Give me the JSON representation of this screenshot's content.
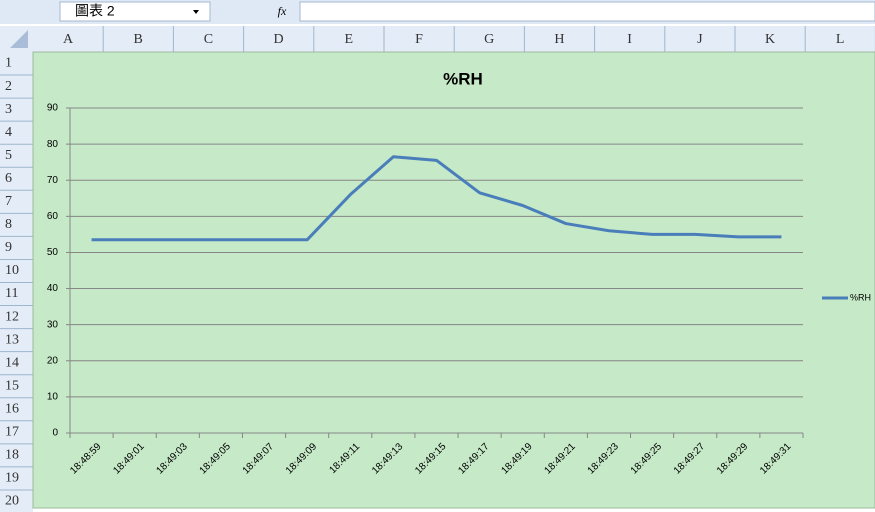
{
  "name_box": "圖表 2",
  "formula_label": "fx",
  "columns": [
    "A",
    "B",
    "C",
    "D",
    "E",
    "F",
    "G",
    "H",
    "I",
    "J",
    "K",
    "L"
  ],
  "rows": [
    "1",
    "2",
    "3",
    "4",
    "5",
    "6",
    "7",
    "8",
    "9",
    "10",
    "11",
    "12",
    "13",
    "14",
    "15",
    "16",
    "17",
    "18",
    "19",
    "20"
  ],
  "chart_data": {
    "type": "line",
    "title": "%RH",
    "categories": [
      "18:48:59",
      "18:49:01",
      "18:49:03",
      "18:49:05",
      "18:49:07",
      "18:49:09",
      "18:49:11",
      "18:49:13",
      "18:49:15",
      "18:49:17",
      "18:49:19",
      "18:49:21",
      "18:49:23",
      "18:49:25",
      "18:49:27",
      "18:49:29",
      "18:49:31"
    ],
    "series": [
      {
        "name": "%RH",
        "color": "#4a7ebb",
        "values": [
          53.5,
          53.5,
          53.5,
          53.5,
          53.5,
          53.5,
          66,
          76.5,
          75.5,
          66.5,
          63,
          58,
          56,
          55,
          55,
          54.3,
          54.3
        ]
      }
    ],
    "ylim": [
      0,
      90
    ],
    "yticks": [
      0,
      10,
      20,
      30,
      40,
      50,
      60,
      70,
      80,
      90
    ],
    "grid": true,
    "legend": "right"
  }
}
